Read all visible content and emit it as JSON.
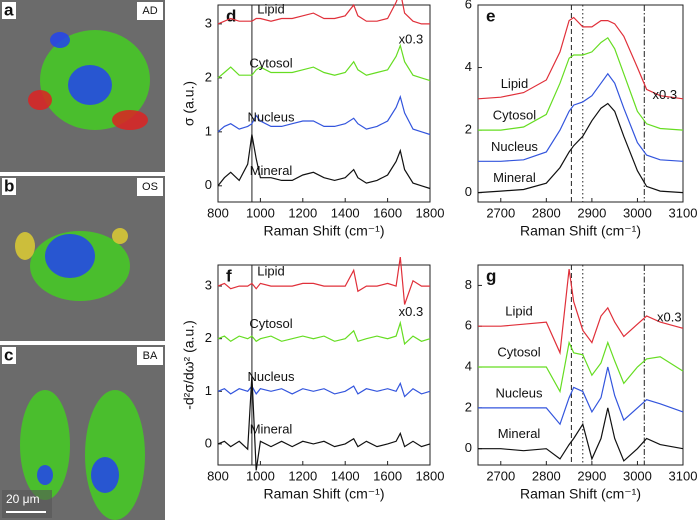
{
  "images": [
    {
      "label": "a",
      "tag": "AD"
    },
    {
      "label": "b",
      "tag": "OS"
    },
    {
      "label": "c",
      "tag": "BA"
    }
  ],
  "scale_bar": "20 μm",
  "chart_data": [
    {
      "type": "line",
      "label": "d",
      "ylabel": "σ (a.u.)",
      "xlabel": "Raman Shift (cm⁻¹)",
      "annotation": "x0.3",
      "xlim": [
        800,
        1800
      ],
      "xticks": [
        800,
        1000,
        1200,
        1400,
        1600,
        1800
      ],
      "ylim": [
        -0.3,
        3.35
      ],
      "yticks": [
        0,
        1,
        2,
        3
      ],
      "vlines": [
        {
          "x": 960,
          "style": "solid"
        }
      ],
      "x": [
        800,
        830,
        860,
        900,
        940,
        960,
        980,
        1000,
        1050,
        1100,
        1150,
        1200,
        1250,
        1300,
        1350,
        1400,
        1440,
        1460,
        1500,
        1550,
        1600,
        1640,
        1660,
        1680,
        1720,
        1760,
        1800
      ],
      "series": [
        {
          "name": "Lipid",
          "color": "#e0303a",
          "values": [
            3.0,
            3.05,
            3.1,
            3.05,
            3.05,
            3.05,
            3.1,
            3.1,
            3.05,
            3.1,
            3.1,
            3.15,
            3.2,
            3.1,
            3.1,
            3.15,
            3.35,
            3.15,
            3.05,
            3.05,
            3.1,
            3.4,
            3.6,
            3.2,
            3.05,
            3.0,
            3.0
          ]
        },
        {
          "name": "Cytosol",
          "color": "#66dd22",
          "values": [
            2.0,
            2.1,
            2.2,
            2.05,
            2.05,
            2.05,
            2.15,
            2.2,
            2.1,
            2.1,
            2.1,
            2.15,
            2.2,
            2.1,
            2.05,
            2.1,
            2.3,
            2.15,
            2.05,
            2.1,
            2.15,
            2.4,
            2.6,
            2.3,
            2.05,
            2.0,
            1.95
          ]
        },
        {
          "name": "Nucleus",
          "color": "#3355dd",
          "values": [
            1.0,
            1.1,
            1.15,
            1.05,
            1.1,
            1.15,
            1.3,
            1.2,
            1.1,
            1.1,
            1.15,
            1.2,
            1.2,
            1.1,
            1.1,
            1.15,
            1.25,
            1.15,
            1.05,
            1.1,
            1.2,
            1.45,
            1.65,
            1.35,
            1.05,
            1.0,
            0.95
          ]
        },
        {
          "name": "Mineral",
          "color": "#111111",
          "values": [
            0,
            0.15,
            0.25,
            0.1,
            0.4,
            0.95,
            0.5,
            0.15,
            0.15,
            0.1,
            0.1,
            0.2,
            0.25,
            0.15,
            0.1,
            0.15,
            0.3,
            0.15,
            0.05,
            0.1,
            0.2,
            0.45,
            0.65,
            0.3,
            0.05,
            0,
            -0.05
          ]
        }
      ]
    },
    {
      "type": "line",
      "label": "e",
      "xlabel": "Raman Shift (cm⁻¹)",
      "annotation": "x0.3",
      "xlim": [
        2650,
        3100
      ],
      "xticks": [
        2700,
        2800,
        2900,
        3000,
        3100
      ],
      "ylim": [
        -0.3,
        6
      ],
      "yticks": [
        0,
        2,
        4,
        6
      ],
      "vlines": [
        {
          "x": 2855,
          "style": "dashed"
        },
        {
          "x": 2880,
          "style": "dotted"
        },
        {
          "x": 3015,
          "style": "dashdot"
        }
      ],
      "x": [
        2650,
        2700,
        2750,
        2800,
        2830,
        2850,
        2860,
        2880,
        2900,
        2920,
        2935,
        2950,
        2970,
        3000,
        3020,
        3050,
        3100
      ],
      "series": [
        {
          "name": "Lipid",
          "color": "#e0303a",
          "values": [
            3.0,
            3.05,
            3.2,
            3.6,
            4.5,
            5.5,
            5.6,
            5.3,
            5.3,
            5.5,
            5.5,
            5.4,
            5.0,
            4.0,
            3.3,
            3.1,
            3.0
          ]
        },
        {
          "name": "Cytosol",
          "color": "#66dd22",
          "values": [
            2.0,
            2.0,
            2.1,
            2.5,
            3.5,
            4.3,
            4.4,
            4.4,
            4.5,
            4.8,
            4.95,
            4.6,
            3.8,
            2.6,
            2.2,
            2.05,
            2.0
          ]
        },
        {
          "name": "Nucleus",
          "color": "#3355dd",
          "values": [
            1.0,
            1.0,
            1.05,
            1.3,
            2.0,
            2.6,
            2.8,
            2.9,
            3.1,
            3.5,
            3.8,
            3.5,
            2.7,
            1.6,
            1.2,
            1.05,
            1.0
          ]
        },
        {
          "name": "Mineral",
          "color": "#111111",
          "values": [
            0,
            0.05,
            0.1,
            0.3,
            0.8,
            1.3,
            1.5,
            1.8,
            2.3,
            2.7,
            2.85,
            2.6,
            1.8,
            0.7,
            0.2,
            0.05,
            0
          ]
        }
      ]
    },
    {
      "type": "line",
      "label": "f",
      "ylabel": "-d²σ/dω² (a.u.)",
      "xlabel": "Raman Shift (cm⁻¹)",
      "annotation": "x0.3",
      "xlim": [
        800,
        1800
      ],
      "xticks": [
        800,
        1000,
        1200,
        1400,
        1600,
        1800
      ],
      "ylim": [
        -0.4,
        3.4
      ],
      "yticks": [
        0,
        1,
        2,
        3
      ],
      "vlines": [
        {
          "x": 960,
          "style": "solid"
        }
      ],
      "x": [
        800,
        830,
        860,
        900,
        940,
        960,
        980,
        1000,
        1050,
        1100,
        1150,
        1200,
        1250,
        1300,
        1350,
        1400,
        1440,
        1460,
        1500,
        1550,
        1600,
        1640,
        1660,
        1680,
        1720,
        1760,
        1800
      ],
      "series": [
        {
          "name": "Lipid",
          "color": "#e0303a",
          "values": [
            3,
            3.05,
            2.95,
            3,
            3,
            3.05,
            2.95,
            3.05,
            3,
            3,
            3,
            3.05,
            3.05,
            3,
            3,
            3,
            3.3,
            2.9,
            3,
            3,
            3.05,
            3.0,
            3.55,
            2.65,
            3.1,
            3,
            3
          ]
        },
        {
          "name": "Cytosol",
          "color": "#66dd22",
          "values": [
            2,
            2.05,
            1.95,
            2.05,
            2,
            2.05,
            1.95,
            2,
            2.05,
            1.95,
            2,
            2.05,
            2,
            2.05,
            1.95,
            2,
            2.15,
            1.95,
            2,
            2.05,
            2,
            2.05,
            2.3,
            1.9,
            2.05,
            1.95,
            2
          ]
        },
        {
          "name": "Nucleus",
          "color": "#3355dd",
          "values": [
            1,
            1.05,
            0.95,
            1.05,
            1,
            1.1,
            0.95,
            1.05,
            1,
            1.05,
            0.95,
            1.05,
            1,
            1.05,
            0.95,
            1.0,
            1.1,
            0.95,
            1.05,
            1,
            1.05,
            1.0,
            1.15,
            0.9,
            1.05,
            0.95,
            1
          ]
        },
        {
          "name": "Mineral",
          "color": "#111111",
          "values": [
            0,
            0.05,
            -0.05,
            0.05,
            -0.1,
            1.3,
            -0.5,
            0.05,
            -0.05,
            0.05,
            -0.05,
            0.05,
            0,
            0.05,
            -0.05,
            0,
            0.1,
            -0.05,
            0.05,
            -0.05,
            0,
            0.05,
            0.2,
            -0.05,
            0.05,
            -0.05,
            0
          ]
        }
      ]
    },
    {
      "type": "line",
      "label": "g",
      "xlabel": "Raman Shift (cm⁻¹)",
      "annotation": "x0.3",
      "xlim": [
        2650,
        3100
      ],
      "xticks": [
        2700,
        2800,
        2900,
        3000,
        3100
      ],
      "ylim": [
        -0.8,
        9
      ],
      "yticks": [
        0,
        2,
        4,
        6,
        8
      ],
      "vlines": [
        {
          "x": 2855,
          "style": "dashed"
        },
        {
          "x": 2880,
          "style": "dotted"
        },
        {
          "x": 3015,
          "style": "dashdot"
        }
      ],
      "x": [
        2650,
        2700,
        2750,
        2800,
        2830,
        2850,
        2860,
        2880,
        2900,
        2920,
        2935,
        2950,
        2970,
        3000,
        3020,
        3050,
        3100
      ],
      "series": [
        {
          "name": "Lipid",
          "color": "#e0303a",
          "values": [
            6,
            6,
            6.1,
            6.2,
            4.7,
            8.8,
            7.2,
            5.8,
            5.2,
            6.5,
            6.9,
            6.2,
            5.5,
            6.1,
            6.5,
            6.2,
            5.9
          ]
        },
        {
          "name": "Cytosol",
          "color": "#66dd22",
          "values": [
            4,
            4,
            4,
            4,
            2.8,
            5.2,
            4.7,
            4.6,
            3.6,
            4.2,
            5.2,
            4.3,
            3.2,
            4,
            4.4,
            4.5,
            3.8
          ]
        },
        {
          "name": "Nucleus",
          "color": "#3355dd",
          "values": [
            2,
            2,
            2,
            2,
            1.2,
            2.5,
            3,
            2.8,
            1.8,
            2.5,
            4.0,
            2.6,
            1.4,
            2,
            2.4,
            2.2,
            1.8
          ]
        },
        {
          "name": "Mineral",
          "color": "#111111",
          "values": [
            0,
            0,
            -0.1,
            0,
            -0.5,
            0.2,
            0.5,
            1.2,
            -0.5,
            0.5,
            2.0,
            0.5,
            -0.6,
            0,
            0.5,
            0.2,
            0
          ]
        }
      ]
    }
  ]
}
